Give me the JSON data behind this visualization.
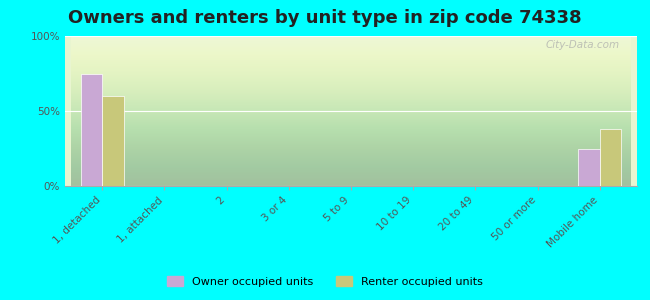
{
  "title": "Owners and renters by unit type in zip code 74338",
  "categories": [
    "1, detached",
    "1, attached",
    "2",
    "3 or 4",
    "5 to 9",
    "10 to 19",
    "20 to 49",
    "50 or more",
    "Mobile home"
  ],
  "owner_values": [
    75,
    0,
    0,
    0,
    0,
    0,
    0,
    0,
    25
  ],
  "renter_values": [
    60,
    0,
    0,
    0,
    0,
    0,
    0,
    0,
    38
  ],
  "owner_color": "#c9a8d4",
  "renter_color": "#c8c87a",
  "ylim": [
    0,
    100
  ],
  "yticks": [
    0,
    50,
    100
  ],
  "ytick_labels": [
    "0%",
    "50%",
    "100%"
  ],
  "background_color": "#e8f5d0",
  "outer_background": "#00ffff",
  "bar_width": 0.35,
  "legend_owner": "Owner occupied units",
  "legend_renter": "Renter occupied units",
  "watermark": "City-Data.com",
  "title_fontsize": 13,
  "tick_fontsize": 7.5
}
